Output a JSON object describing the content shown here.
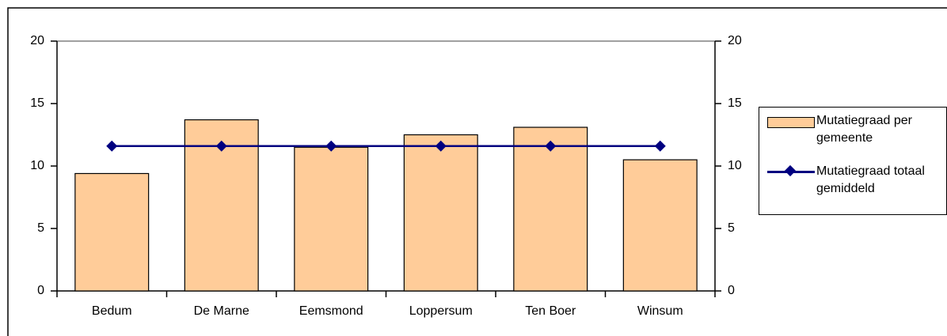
{
  "chart_data": {
    "type": "bar",
    "categories": [
      "Bedum",
      "De Marne",
      "Eemsmond",
      "Loppersum",
      "Ten Boer",
      "Winsum"
    ],
    "series": [
      {
        "name": "Mutatiegraad per gemeente",
        "type": "bar",
        "color": "#FFCC99",
        "values": [
          9.4,
          13.7,
          11.5,
          12.5,
          13.1,
          10.5
        ]
      },
      {
        "name": "Mutatiegraad totaal gemiddeld",
        "type": "line",
        "axis": "y2",
        "color": "#000080",
        "values": [
          11.6,
          11.6,
          11.6,
          11.6,
          11.6,
          11.6
        ]
      }
    ],
    "ylim": [
      0,
      20
    ],
    "yticks": [
      0,
      5,
      10,
      15,
      20
    ],
    "y2lim": [
      0,
      20
    ],
    "y2ticks": [
      0,
      5,
      10,
      15,
      20
    ],
    "grid": false,
    "legend": "right"
  }
}
